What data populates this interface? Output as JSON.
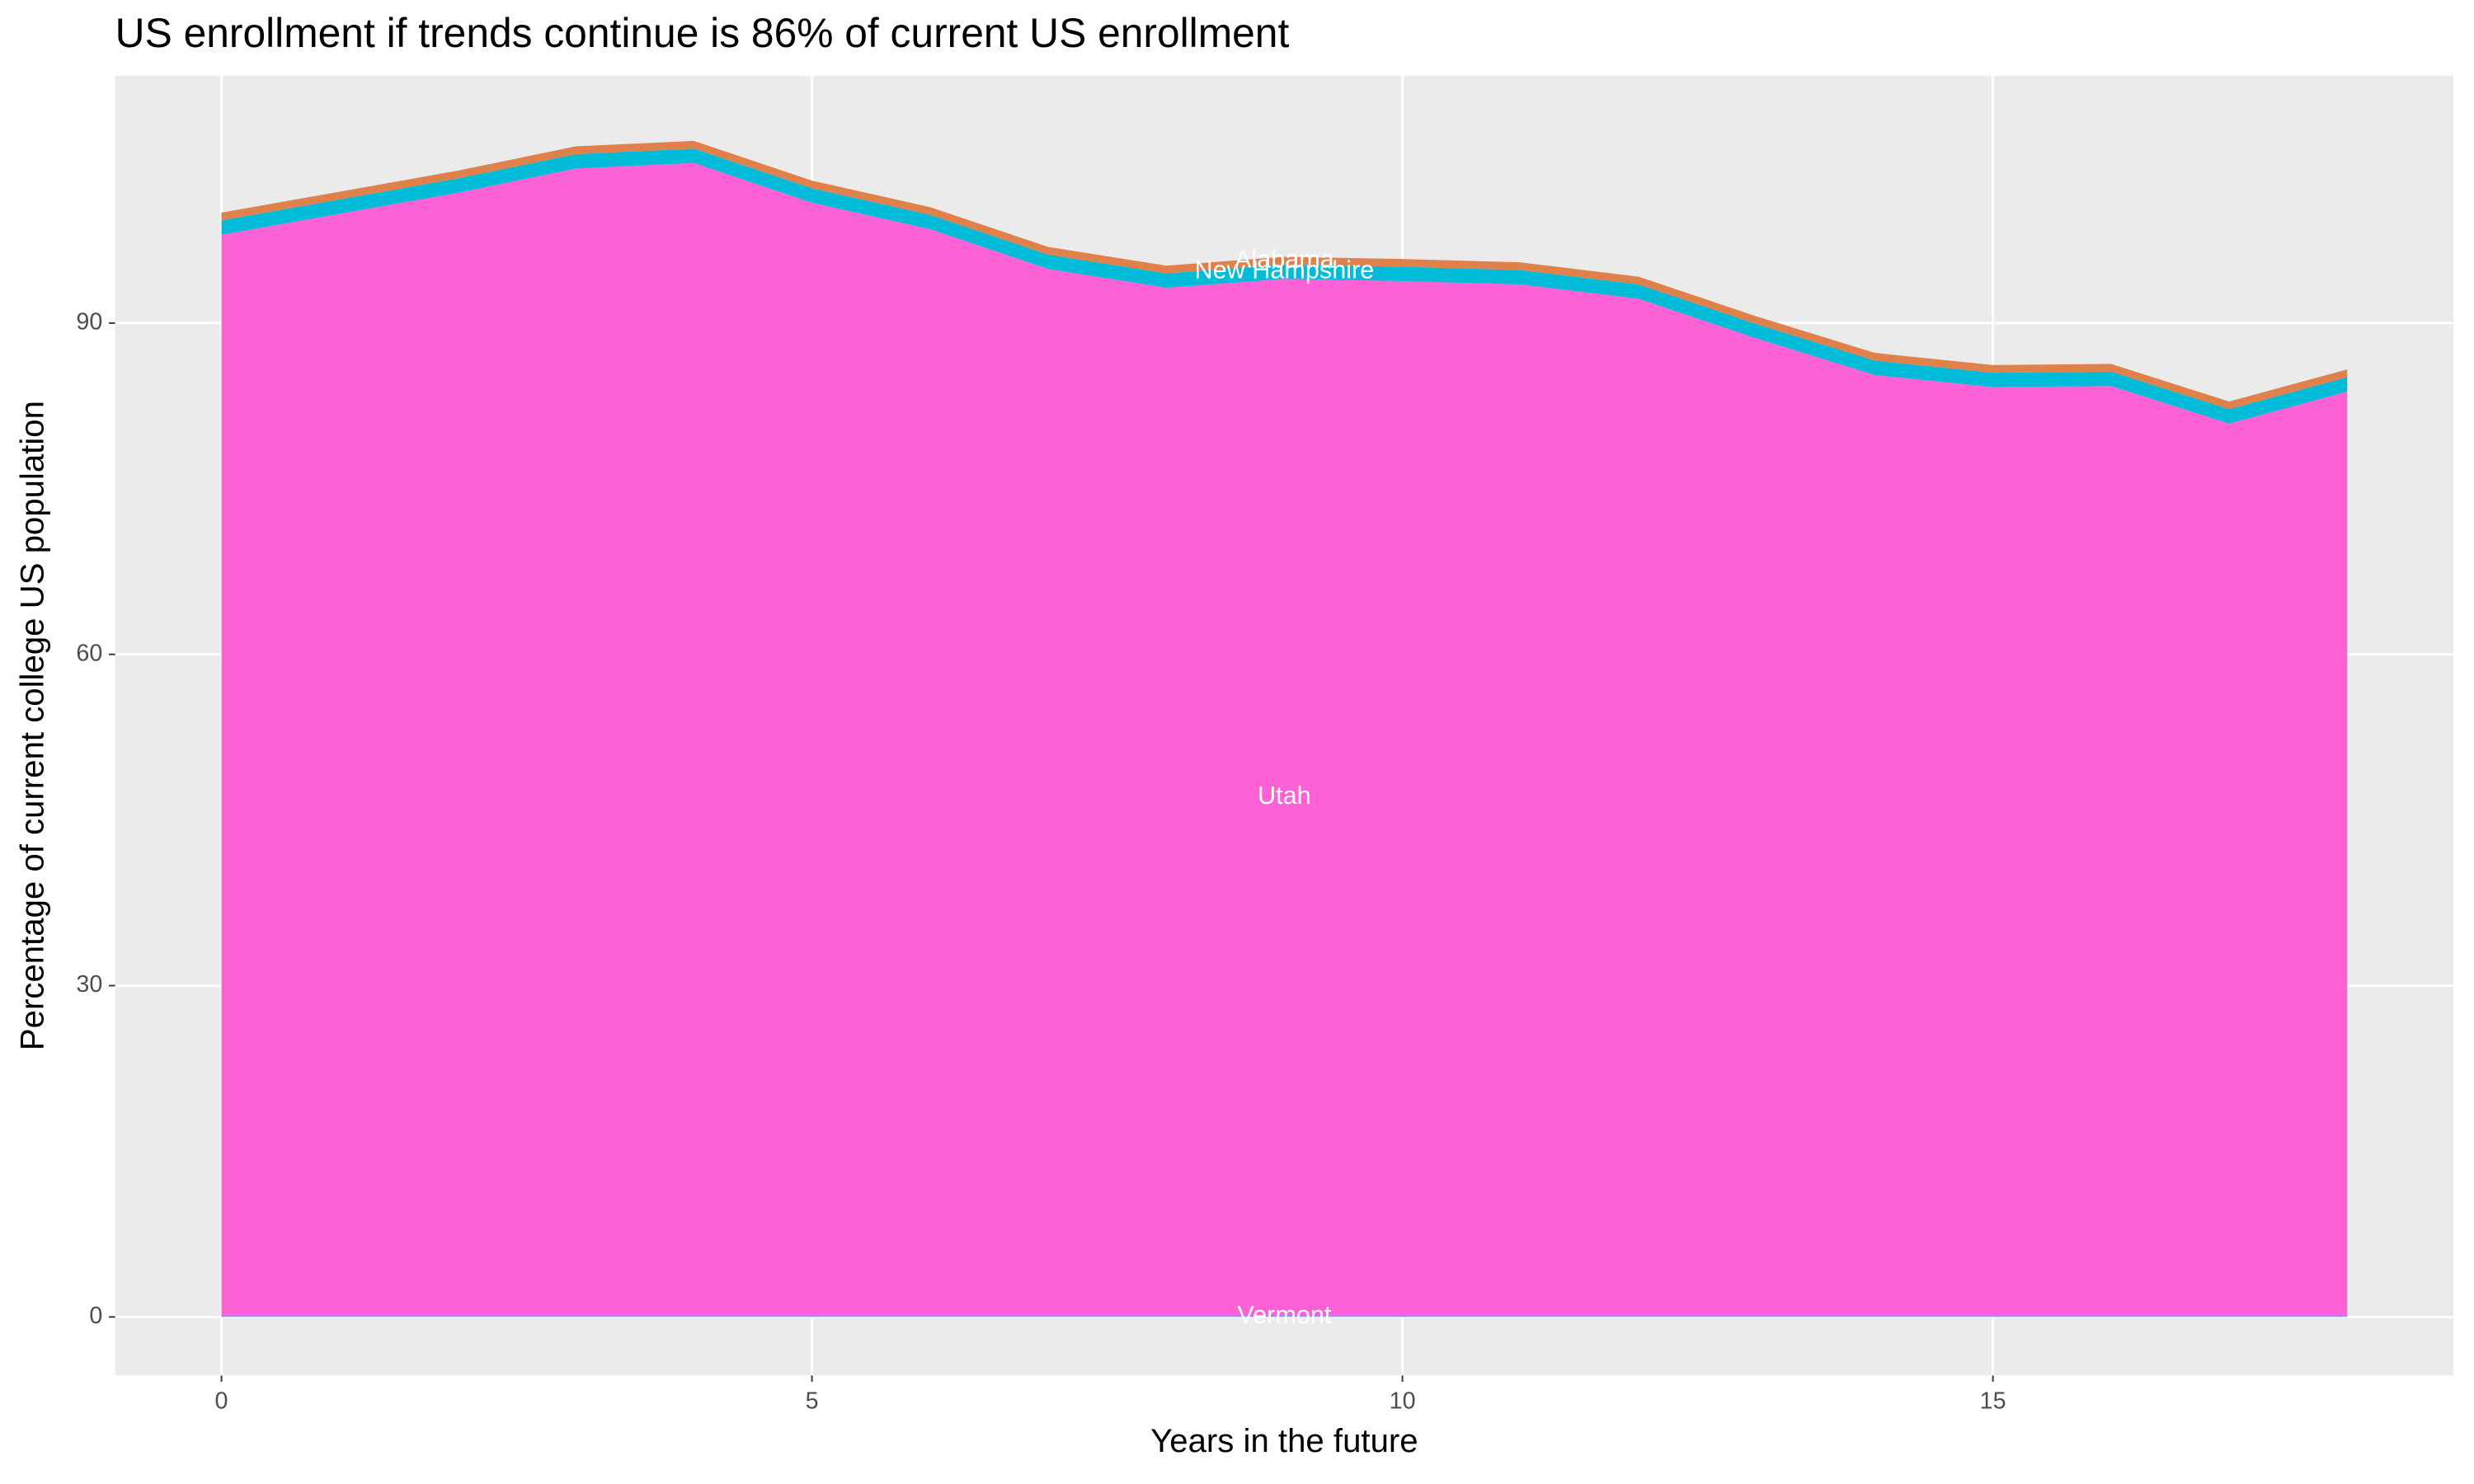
{
  "chart_data": {
    "type": "stacked-area",
    "title": "US enrollment if trends continue is 86% of current US enrollment",
    "xlabel": "Years in the future",
    "ylabel": "Percentage of current college US population",
    "x": [
      0,
      1,
      2,
      3,
      4,
      5,
      6,
      7,
      8,
      9,
      10,
      11,
      12,
      13,
      14,
      15,
      16,
      17,
      18
    ],
    "series": [
      {
        "name": "Vermont",
        "color": "#9590ff",
        "values": [
          0.1,
          0.1,
          0.1,
          0.1,
          0.1,
          0.1,
          0.1,
          0.1,
          0.1,
          0.1,
          0.1,
          0.1,
          0.1,
          0.1,
          0.1,
          0.1,
          0.1,
          0.1,
          0.1
        ]
      },
      {
        "name": "Utah",
        "color": "#fc61d5",
        "values": [
          97.9,
          99.8,
          101.7,
          103.9,
          104.4,
          100.8,
          98.4,
          94.8,
          93.1,
          93.9,
          93.7,
          93.4,
          92.1,
          88.5,
          85.2,
          84.1,
          84.2,
          80.8,
          83.7
        ]
      },
      {
        "name": "New Hampshire",
        "color": "#00bcd8",
        "values": [
          1.3,
          1.3,
          1.3,
          1.3,
          1.3,
          1.3,
          1.3,
          1.3,
          1.3,
          1.3,
          1.3,
          1.3,
          1.3,
          1.3,
          1.3,
          1.3,
          1.3,
          1.3,
          1.3
        ]
      },
      {
        "name": "Alabama",
        "color": "#e0804a",
        "values": [
          0.7,
          0.7,
          0.7,
          0.7,
          0.7,
          0.7,
          0.7,
          0.7,
          0.7,
          0.7,
          0.7,
          0.7,
          0.7,
          0.7,
          0.7,
          0.7,
          0.7,
          0.7,
          0.7
        ]
      }
    ],
    "xlim": [
      -0.9,
      18.9
    ],
    "ylim": [
      -5.3,
      112.4
    ],
    "xticks": [
      0,
      5,
      10,
      15
    ],
    "yticks": [
      0,
      30,
      60,
      90
    ],
    "grid": true
  }
}
